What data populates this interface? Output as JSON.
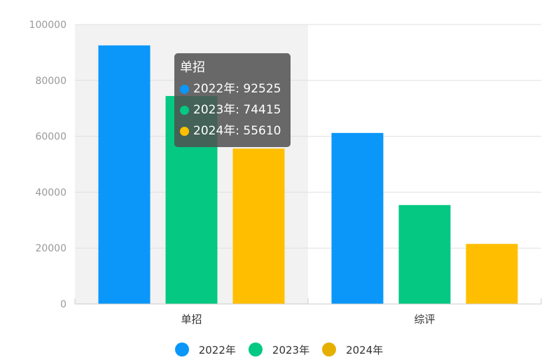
{
  "chart_data": {
    "type": "bar",
    "categories": [
      "单招",
      "综评"
    ],
    "series": [
      {
        "name": "2022年",
        "values": [
          92525,
          61200
        ],
        "color": "#0A97F9"
      },
      {
        "name": "2023年",
        "values": [
          74415,
          35400
        ],
        "color": "#05C883"
      },
      {
        "name": "2024年",
        "values": [
          55610,
          21500
        ],
        "color": "#FFBF00"
      }
    ],
    "hovered_colors": [
      "#0A97F9",
      "#05C883",
      "#FFBF00"
    ],
    "ylim": [
      0,
      100000
    ],
    "yticks": [
      "0",
      "20000",
      "40000",
      "60000",
      "80000",
      "100000"
    ],
    "grid": true,
    "legend_position": "bottom",
    "hover_category_index": 0,
    "xlabel": "",
    "ylabel": "",
    "title": ""
  },
  "tooltip": {
    "title": "单招",
    "rows": [
      {
        "label": "2022年: 92525",
        "color": "#0A97F9"
      },
      {
        "label": "2023年: 74415",
        "color": "#05C883"
      },
      {
        "label": "2024年: 55610",
        "color": "#FFBF00"
      }
    ]
  },
  "legend": [
    {
      "label": "2022年",
      "color": "#0A97F9"
    },
    {
      "label": "2023年",
      "color": "#05C883"
    },
    {
      "label": "2024年",
      "color": "#E5B000"
    }
  ]
}
